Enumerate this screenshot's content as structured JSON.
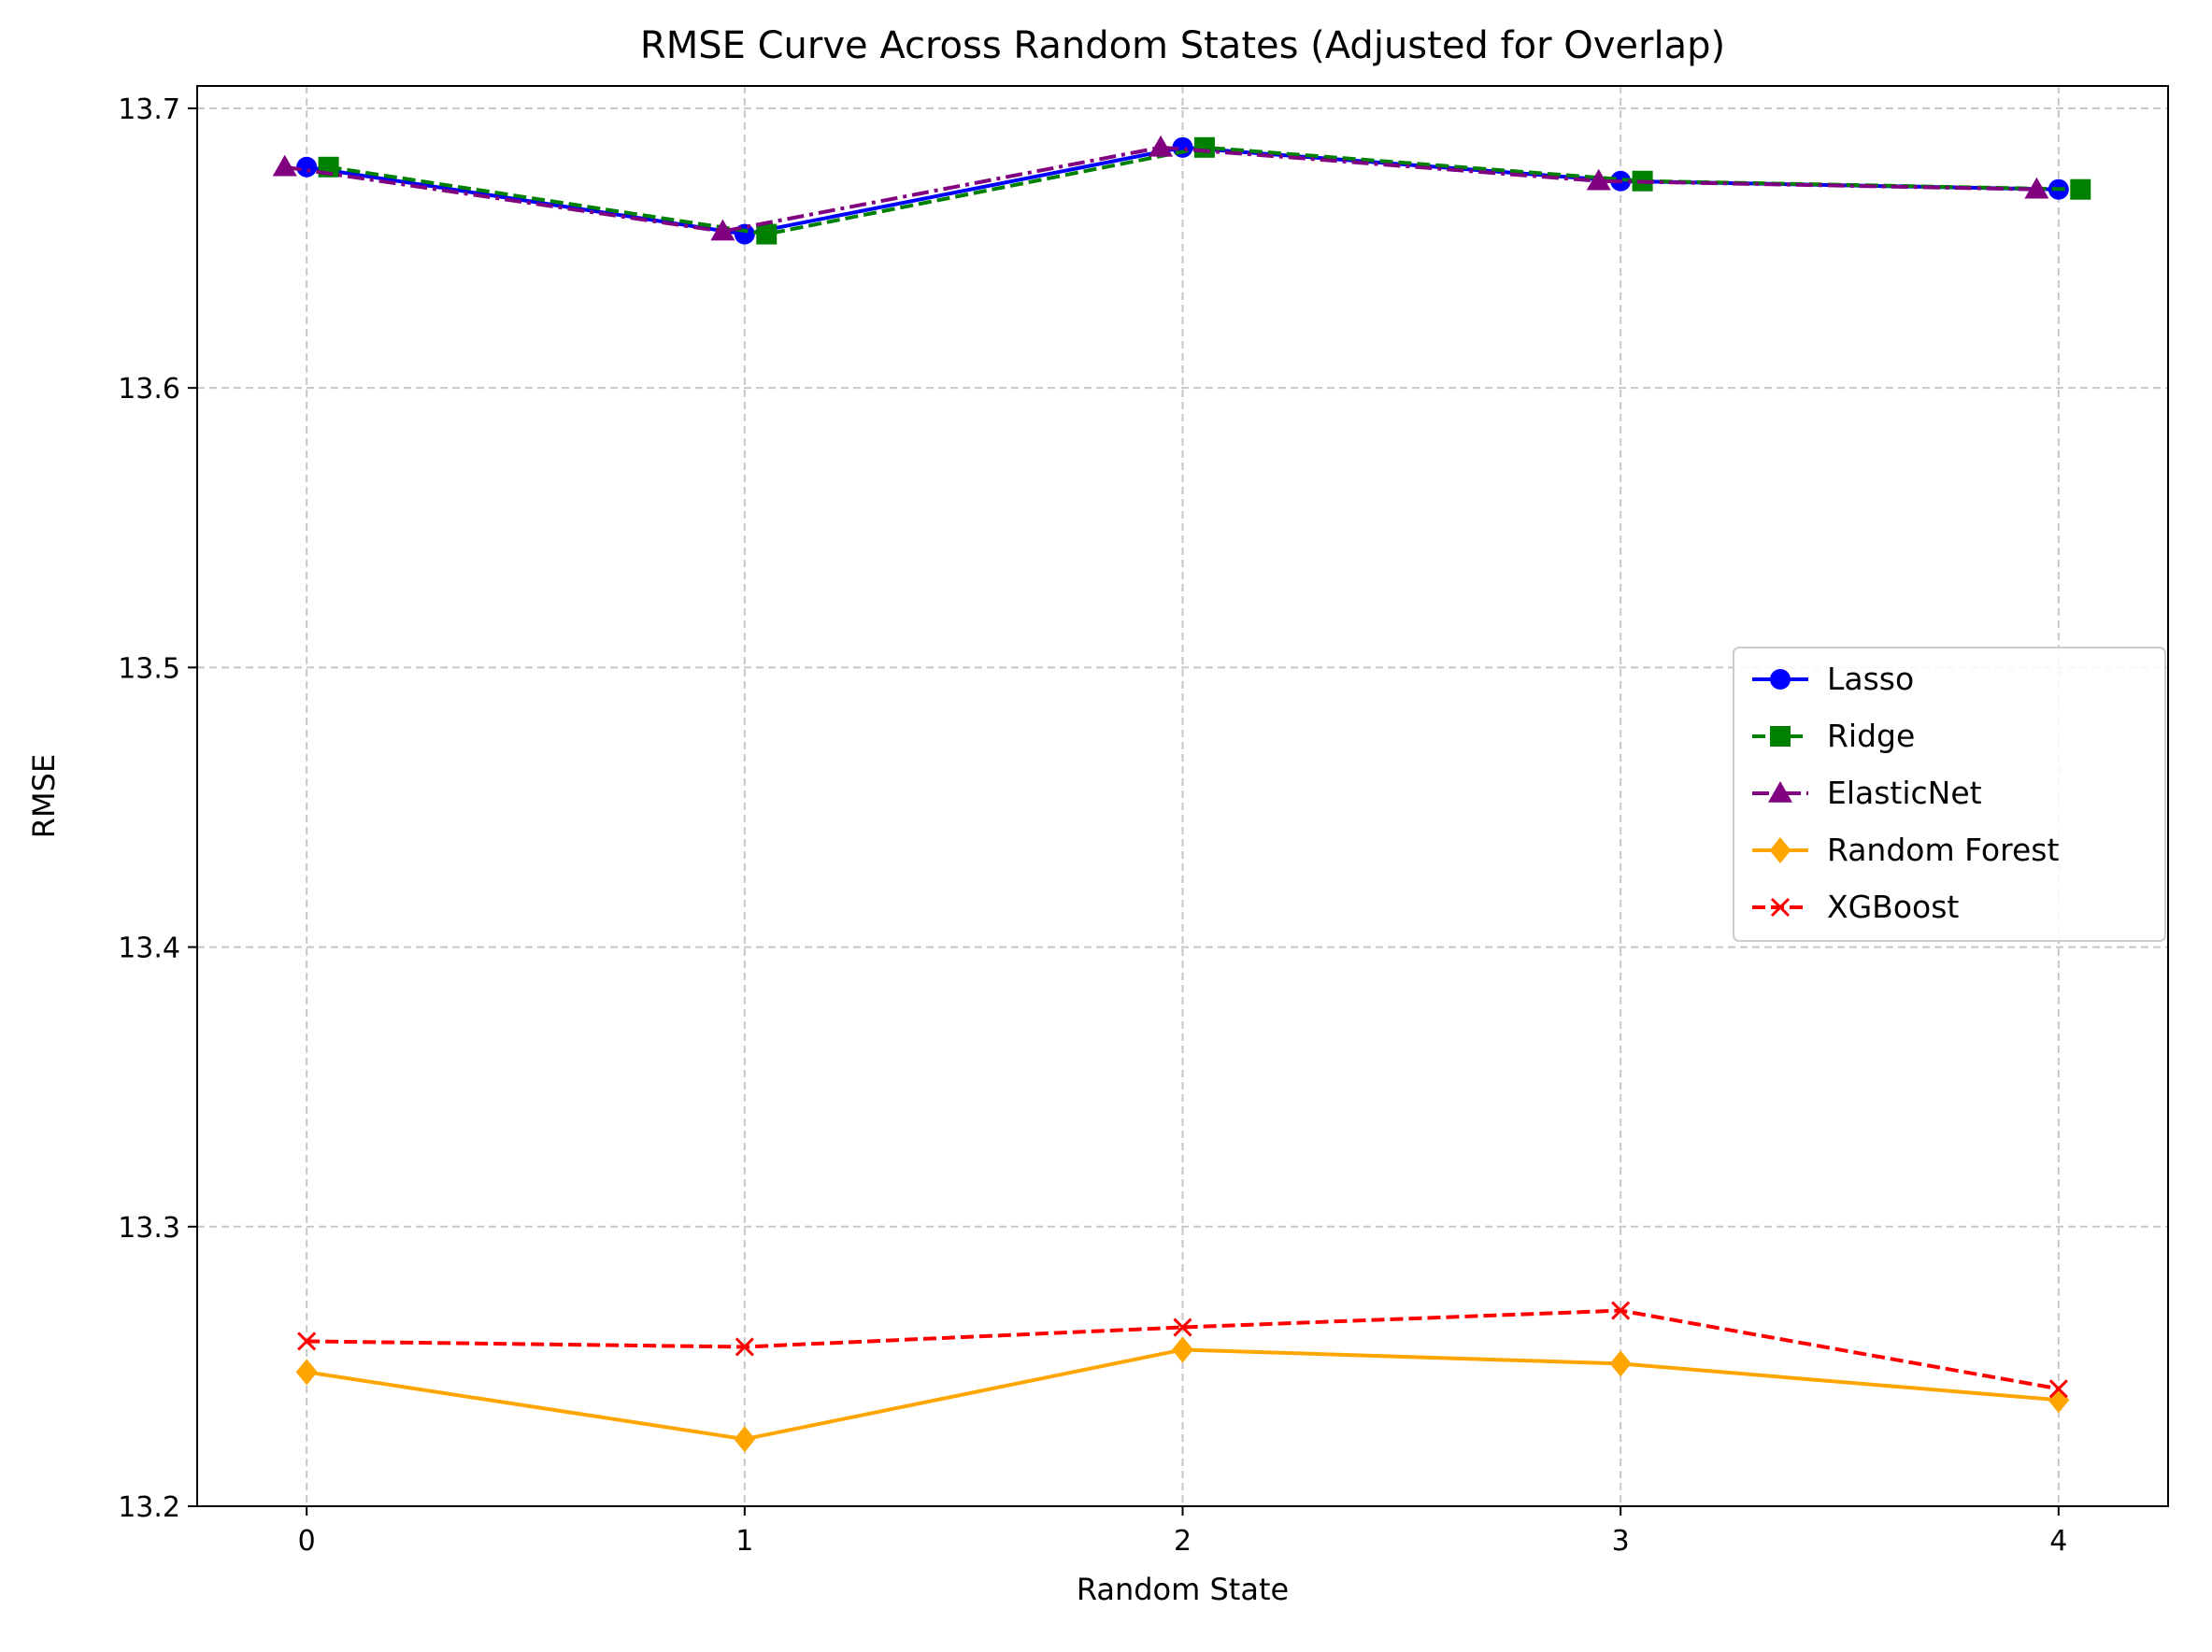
{
  "chart_data": {
    "type": "line",
    "title": "RMSE Curve Across Random States (Adjusted for Overlap)",
    "xlabel": "Random State",
    "ylabel": "RMSE",
    "x": [
      0,
      1,
      2,
      3,
      4
    ],
    "x_ticks": [
      "0",
      "1",
      "2",
      "3",
      "4"
    ],
    "y_ticks": [
      "13.2",
      "13.3",
      "13.4",
      "13.5",
      "13.6",
      "13.7"
    ],
    "xlim": [
      -0.25,
      4.25
    ],
    "ylim": [
      13.2,
      13.708
    ],
    "grid": true,
    "legend_position": "center-right",
    "series": [
      {
        "name": "Lasso",
        "values": [
          13.679,
          13.655,
          13.686,
          13.674,
          13.671
        ],
        "color": "#0000ff",
        "marker": "circle",
        "line_style": "solid",
        "x_offset": 0
      },
      {
        "name": "Ridge",
        "values": [
          13.679,
          13.655,
          13.686,
          13.674,
          13.671
        ],
        "color": "#008000",
        "marker": "square",
        "line_style": "dashed",
        "x_offset": 0.05
      },
      {
        "name": "ElasticNet",
        "values": [
          13.679,
          13.656,
          13.686,
          13.674,
          13.671
        ],
        "color": "#800080",
        "marker": "triangle",
        "line_style": "dashdot",
        "x_offset": -0.05
      },
      {
        "name": "Random Forest",
        "values": [
          13.248,
          13.224,
          13.256,
          13.251,
          13.238
        ],
        "color": "#ffa500",
        "marker": "diamond",
        "line_style": "solid",
        "x_offset": 0
      },
      {
        "name": "XGBoost",
        "values": [
          13.259,
          13.257,
          13.264,
          13.27,
          13.242
        ],
        "color": "#ff0000",
        "marker": "x",
        "line_style": "dashed",
        "x_offset": 0
      }
    ]
  }
}
